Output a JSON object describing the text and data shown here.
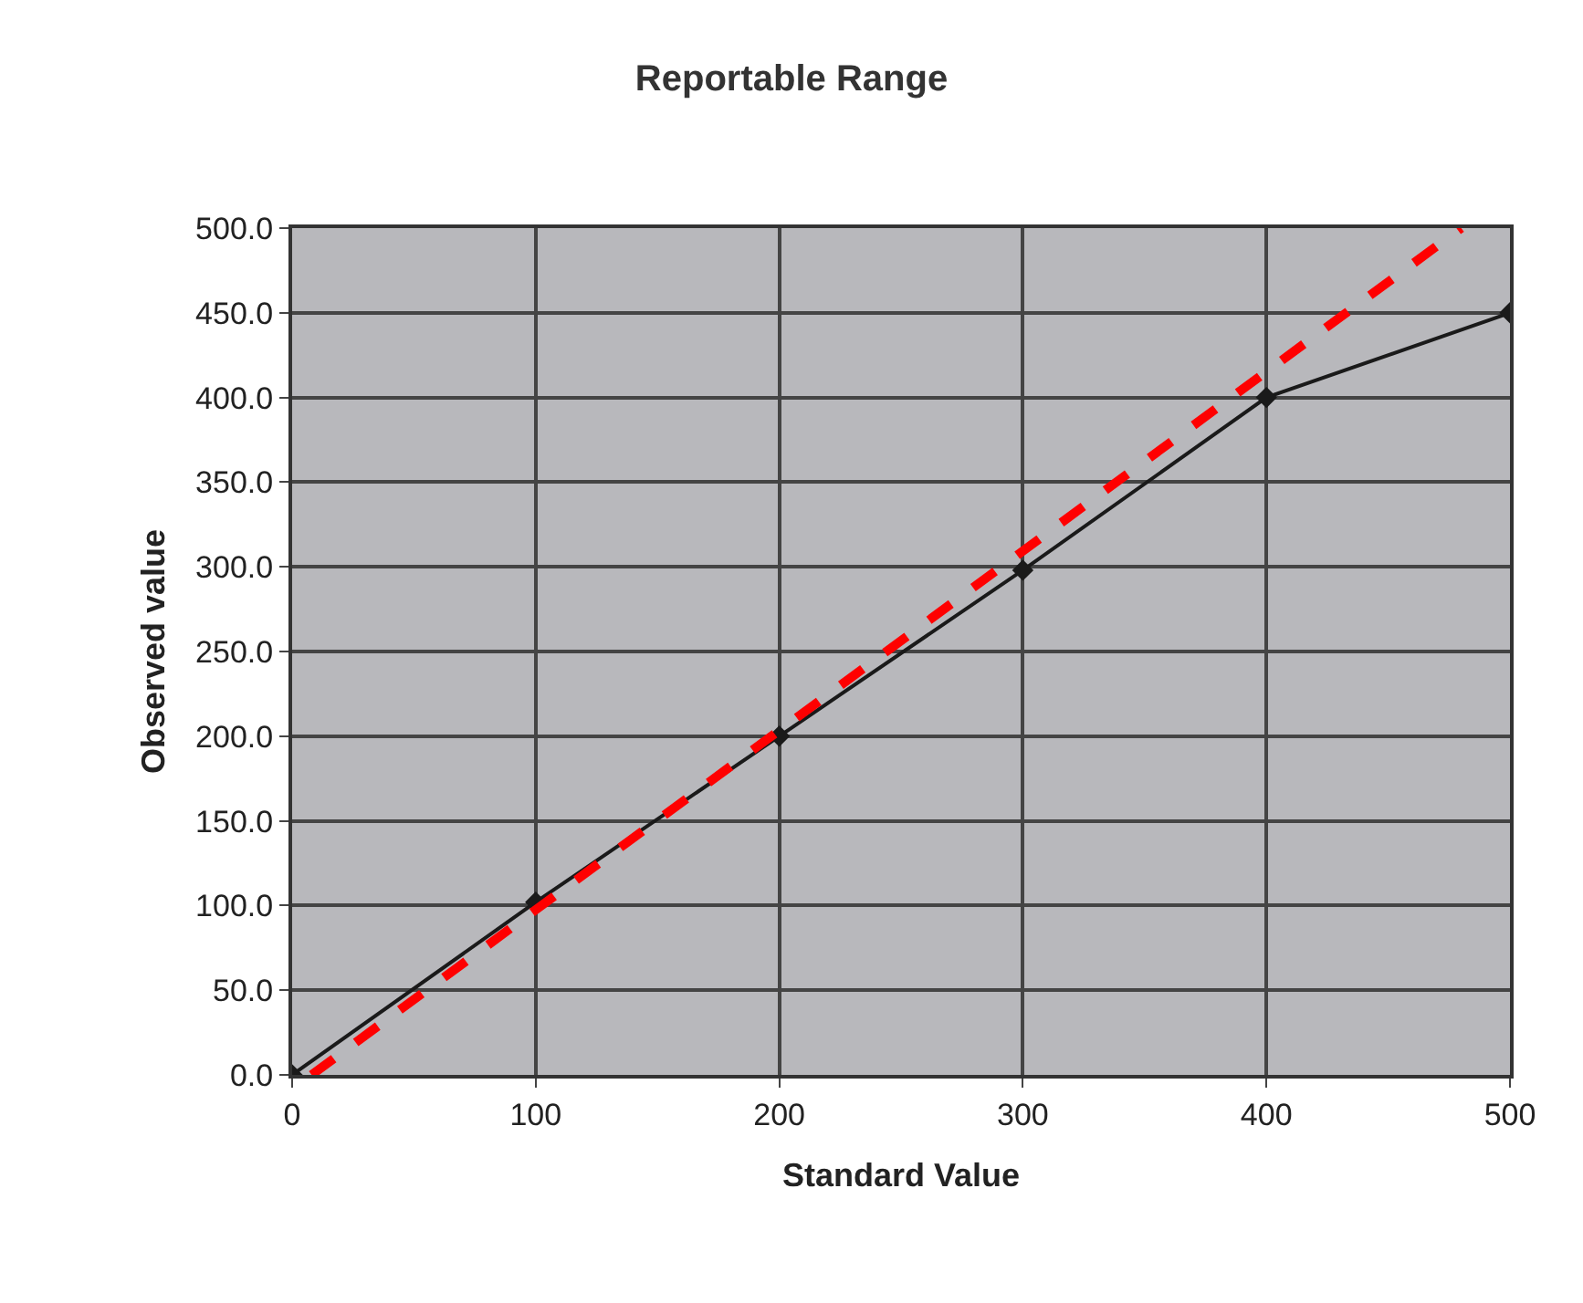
{
  "chart_data": {
    "type": "line",
    "title": "Reportable Range",
    "xlabel": "Standard Value",
    "ylabel": "Observed value",
    "x": [
      0,
      100,
      200,
      300,
      400,
      500
    ],
    "series": [
      {
        "color": "#1a1a1a",
        "values": [
          0,
          102,
          200,
          298,
          400,
          450
        ],
        "marker": "diamond",
        "line_style": "solid"
      },
      {
        "type": "line",
        "x": [
          8,
          480
        ],
        "color": "#ff0000",
        "values": [
          0,
          500
        ],
        "marker": "none",
        "line_style": "dashed"
      }
    ],
    "xlim": [
      0,
      500
    ],
    "xticks": [
      0,
      100,
      200,
      300,
      400,
      500
    ],
    "ylim": [
      0,
      500
    ],
    "yticks": [
      {
        "value": 0,
        "label": "0.0"
      },
      {
        "value": 50,
        "label": "50.0"
      },
      {
        "value": 100,
        "label": "100.0"
      },
      {
        "value": 150,
        "label": "150.0"
      },
      {
        "value": 200,
        "label": "200.0"
      },
      {
        "value": 250,
        "label": "250.0"
      },
      {
        "value": 300,
        "label": "300.0"
      },
      {
        "value": 350,
        "label": "350.0"
      },
      {
        "value": 400,
        "label": "400.0"
      },
      {
        "value": 450,
        "label": "450.0"
      },
      {
        "value": 500,
        "label": "500.0"
      }
    ],
    "grid": true
  }
}
